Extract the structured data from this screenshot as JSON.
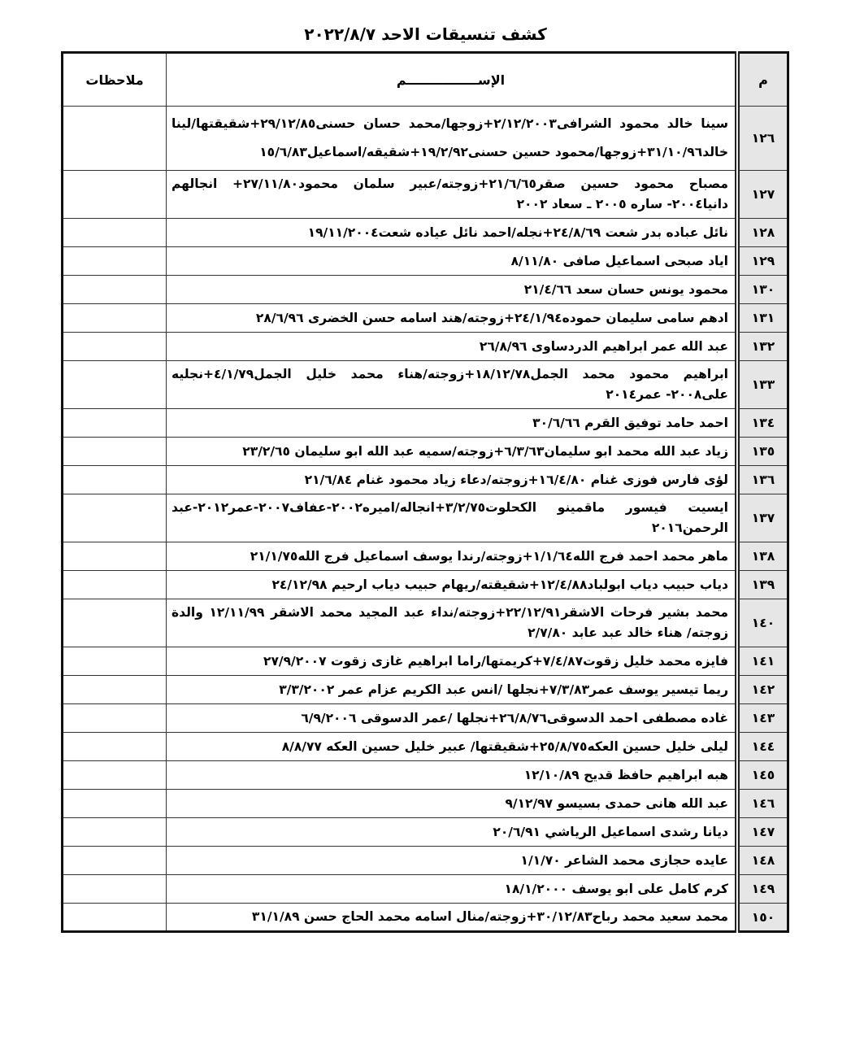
{
  "title": "كشف تنسيقات الاحد ٢٠٢٢/٨/٧",
  "headers": {
    "num": "م",
    "name": "الإســــــــــــــــم",
    "notes": "ملاحظات"
  },
  "rows": [
    {
      "num": "١٢٦",
      "text": "سينا خالد محمود الشرافى٢/١٢/٢٠٠٣+زوجها/محمد حسان حسنى٢٩/١٢/٨٥+شقيقتها/لينا خالد٣١/١٠/٩٦+زوجها/محمود حسين حسنى١٩/٢/٩٢+شقيقه/اسماعيل١٥/٦/٨٣"
    },
    {
      "num": "١٢٧",
      "text": "مصباح محمود حسين صقر٢١/٦/٦٥+زوجته/عبير سلمان محمود٢٧/١١/٨٠+ انجالهم دانيا٢٠٠٤- ساره ٢٠٠٥ ـ سعاد ٢٠٠٢"
    },
    {
      "num": "١٢٨",
      "text": "نائل عباده بدر شعت ٢٤/٨/٦٩+نجله/احمد نائل عياده شعت١٩/١١/٢٠٠٤"
    },
    {
      "num": "١٢٩",
      "text": "اياد صبحى اسماعيل صافى ٨/١١/٨٠"
    },
    {
      "num": "١٣٠",
      "text": "محمود يونس حسان سعد ٢١/٤/٦٦"
    },
    {
      "num": "١٣١",
      "text": "ادهم سامى سليمان حموده٢٤/١/٩٤+زوجته/هند اسامه حسن الخضرى ٢٨/٦/٩٦"
    },
    {
      "num": "١٣٢",
      "text": "عبد الله عمر ابراهيم الدردساوى ٢٦/٨/٩٦"
    },
    {
      "num": "١٣٣",
      "text": "ابراهيم محمود محمد الجمل١٨/١٢/٧٨+زوجته/هناء محمد خليل الجمل٤/١/٧٩+نجليه على٢٠٠٨- عمر٢٠١٤"
    },
    {
      "num": "١٣٤",
      "text": "احمد حامد توفيق القرم ٣٠/٦/٦٦"
    },
    {
      "num": "١٣٥",
      "text": "زياد عبد الله محمد ابو سليمان٦/٣/٦٣+زوجته/سميه عبد الله ابو سليمان ٢٣/٢/٦٥"
    },
    {
      "num": "١٣٦",
      "text": "لؤى فارس فوزى غنام ١٦/٤/٨٠+زوجته/دعاء زياد محمود غنام ٢١/٦/٨٤"
    },
    {
      "num": "١٣٧",
      "text": "ايسيت فيسور ماقمينو الكحلوت٣/٢/٧٥+انجاله/اميره٢٠٠٢-عفاف٢٠٠٧-عمر٢٠١٢-عبد الرحمن٢٠١٦"
    },
    {
      "num": "١٣٨",
      "text": "ماهر محمد احمد فرج الله١/١/٦٤+زوجته/رندا يوسف اسماعيل فرج الله٢١/١/٧٥"
    },
    {
      "num": "١٣٩",
      "text": "دياب حبيب دياب ابولباد١٢/٤/٨٨+شقيقته/ريهام حبيب دياب ارحيم ٢٤/١٢/٩٨"
    },
    {
      "num": "١٤٠",
      "text": "محمد بشير فرحات الاشقر٢٢/١٢/٩١+زوجته/نداء عبد المجيد محمد الاشقر ١٢/١١/٩٩ والدة زوجته/ هناء خالد عبد عابد ٢/٧/٨٠"
    },
    {
      "num": "١٤١",
      "text": "فايزه محمد خليل زقوت٧/٤/٨٧+كريمتها/راما ابراهيم غازى زقوت ٢٧/٩/٢٠٠٧"
    },
    {
      "num": "١٤٢",
      "text": "ريما تيسير يوسف عمر٧/٣/٨٣+نجلها /انس عبد الكريم عزام عمر ٣/٣/٢٠٠٢"
    },
    {
      "num": "١٤٣",
      "text": "غاده مصطفى احمد الدسوقى٢٦/٨/٧٦+نجلها /عمر الدسوقى ٦/٩/٢٠٠٦"
    },
    {
      "num": "١٤٤",
      "text": "ليلى خليل حسين العكه٢٥/٨/٧٥+شقيقتها/ عبير خليل حسين العكه ٨/٨/٧٧"
    },
    {
      "num": "١٤٥",
      "text": "هبه ابراهيم حافظ قديح ١٢/١٠/٨٩"
    },
    {
      "num": "١٤٦",
      "text": "عبد الله هانى حمدى بسيسو ٩/١٢/٩٧"
    },
    {
      "num": "١٤٧",
      "text": "ديانا رشدى اسماعيل الرياشي ٢٠/٦/٩١"
    },
    {
      "num": "١٤٨",
      "text": "عايده حجازى محمد الشاعر ١/١/٧٠"
    },
    {
      "num": "١٤٩",
      "text": "كرم كامل على ابو يوسف ١٨/١/٢٠٠٠"
    },
    {
      "num": "١٥٠",
      "text": "محمد سعيد محمد رباح٣٠/١٢/٨٣+زوجته/منال اسامه محمد الحاج حسن ٣١/١/٨٩"
    }
  ]
}
